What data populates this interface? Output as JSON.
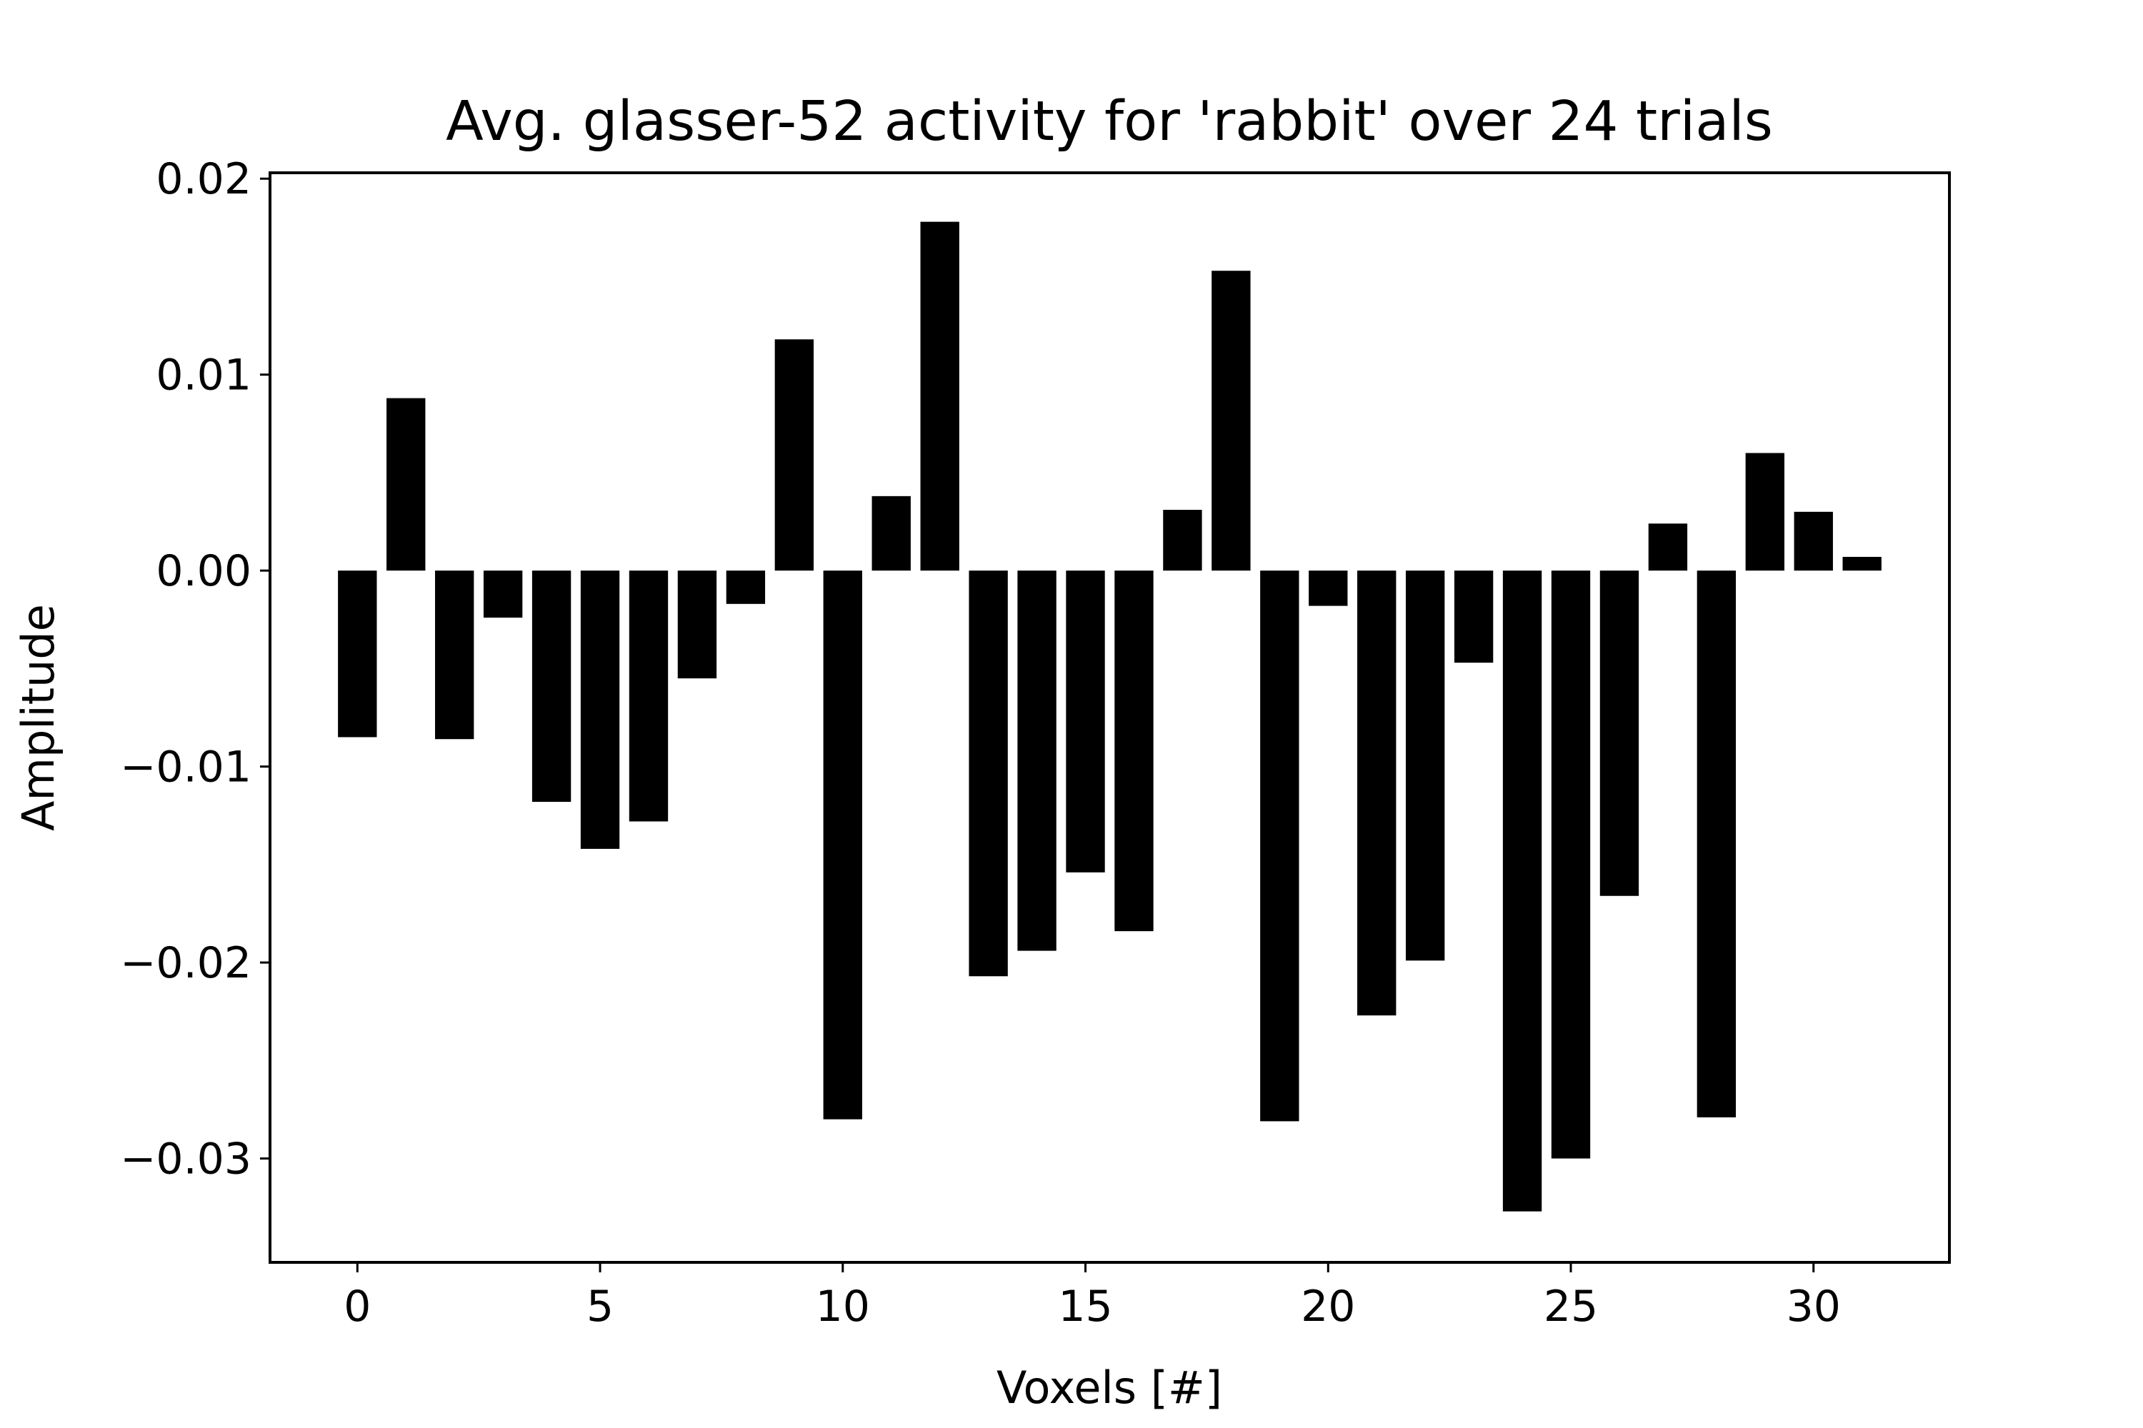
{
  "chart_data": {
    "type": "bar",
    "title": "Avg. glasser-52 activity for 'rabbit' over 24 trials",
    "xlabel": "Voxels [#]",
    "ylabel": "Amplitude",
    "x": [
      0,
      1,
      2,
      3,
      4,
      5,
      6,
      7,
      8,
      9,
      10,
      11,
      12,
      13,
      14,
      15,
      16,
      17,
      18,
      19,
      20,
      21,
      22,
      23,
      24,
      25,
      26,
      27,
      28,
      29,
      30,
      31
    ],
    "values": [
      -0.0085,
      0.0088,
      -0.0086,
      -0.0024,
      -0.0118,
      -0.0142,
      -0.0128,
      -0.0055,
      -0.0017,
      0.0118,
      -0.028,
      0.0038,
      0.0178,
      -0.0207,
      -0.0194,
      -0.0154,
      -0.0184,
      0.0031,
      0.0153,
      -0.0281,
      -0.0018,
      -0.0227,
      -0.0199,
      -0.0047,
      -0.0327,
      -0.03,
      -0.0166,
      0.0024,
      -0.0279,
      0.006,
      0.003,
      0.0007
    ],
    "xlim": [
      -1.8,
      32.8
    ],
    "ylim": [
      -0.0353,
      0.0203
    ],
    "xticks": [
      0,
      5,
      10,
      15,
      20,
      25,
      30
    ],
    "xtick_labels": [
      "0",
      "5",
      "10",
      "15",
      "20",
      "25",
      "30"
    ],
    "yticks": [
      0.02,
      0.01,
      0.0,
      -0.01,
      -0.02,
      -0.03
    ],
    "ytick_labels": [
      "0.02",
      "0.01",
      "0.00",
      "−0.01",
      "−0.02",
      "−0.03"
    ],
    "bar_color": "#000000",
    "grid": false,
    "legend": "none"
  }
}
